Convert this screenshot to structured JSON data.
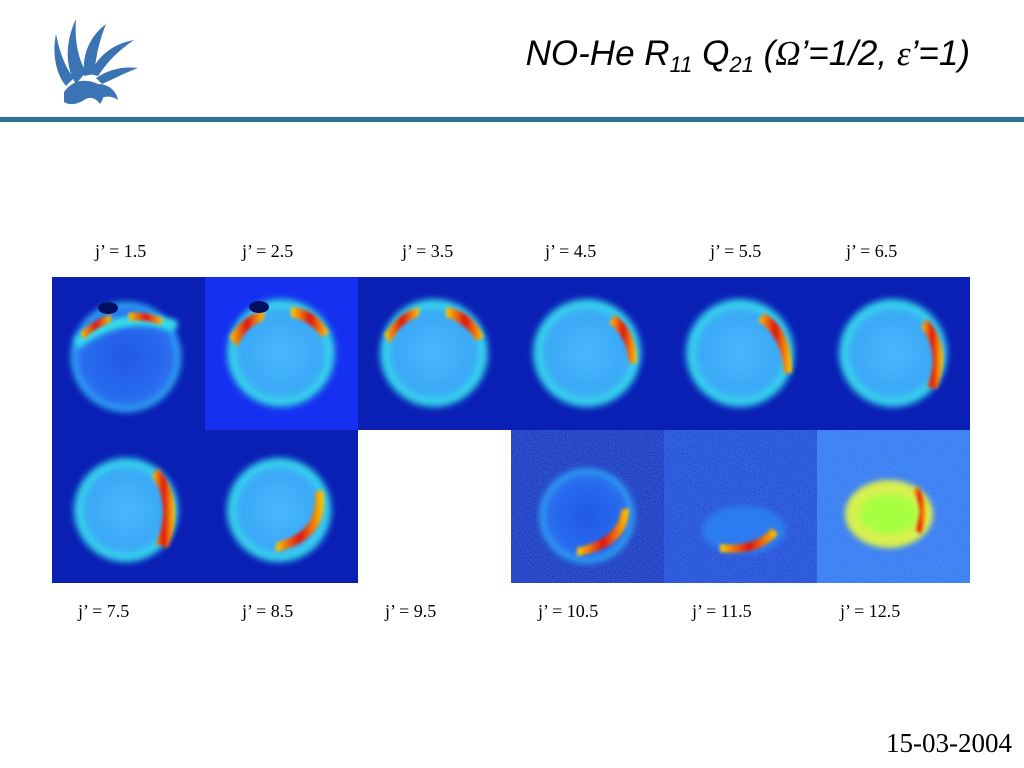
{
  "slide": {
    "title_main": "NO-He R",
    "title_sub1": "11",
    "title_q": " Q",
    "title_sub2": "21",
    "title_paren_open": " (",
    "title_omega": "Ω",
    "title_mid": "’=1/2, ",
    "title_epsilon": "ε",
    "title_end": "’=1)",
    "date": "15-03-2004"
  },
  "top_labels": [
    "j’ = 1.5",
    "j’ = 2.5",
    "j’ = 3.5",
    "j’ = 4.5",
    "j’ = 5.5",
    "j’ = 6.5"
  ],
  "bottom_labels": [
    "j’ = 7.5",
    "j’ = 8.5",
    "j’ = 9.5",
    "j’ = 10.5",
    "j’ = 11.5",
    "j’ = 12.5"
  ],
  "colors": {
    "accent_rule": "#2c6f98",
    "background_panel": "#0a1fb4"
  },
  "icons": {
    "logo": "griffin-logo-icon"
  }
}
